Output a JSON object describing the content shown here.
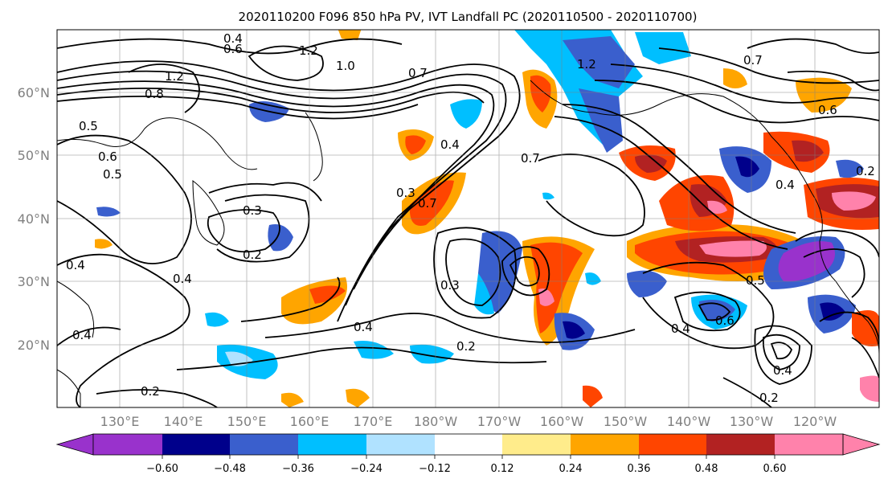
{
  "title": "2020110200 F096 850 hPa PV, IVT Landfall PC (2020110500 - 2020110700)",
  "lat_labels": [
    "60°N",
    "50°N",
    "40°N",
    "30°N",
    "20°N"
  ],
  "lon_labels": [
    "130°E",
    "140°E",
    "150°E",
    "160°E",
    "170°E",
    "180°W",
    "170°W",
    "160°W",
    "150°W",
    "140°W",
    "130°W",
    "120°W"
  ],
  "colorbar": {
    "ticks": [
      "−0.60",
      "−0.48",
      "−0.36",
      "−0.24",
      "−0.12",
      "0.12",
      "0.24",
      "0.36",
      "0.48",
      "0.60"
    ],
    "colors": [
      "#9932cc",
      "#00008b",
      "#3a5fcd",
      "#00bfff",
      "#b0e2ff",
      "#ffffff",
      "#ffec8b",
      "#ffa500",
      "#ff4500",
      "#b22222",
      "#ff82ab"
    ]
  },
  "contour_labels": [
    "0.4",
    "0.6",
    "1.2",
    "1.0",
    "1.2",
    "0.7",
    "0.8",
    "0.5",
    "0.6",
    "0.5",
    "0.3",
    "0.2",
    "0.4",
    "0.4",
    "0.4",
    "0.3",
    "0.4",
    "0.7",
    "0.7",
    "0.3",
    "0.4",
    "0.2",
    "0.2",
    "0.4",
    "0.6",
    "0.4",
    "0.4",
    "0.2",
    "0.5",
    "1.2",
    "0.7",
    "0.6",
    "0.2"
  ]
}
